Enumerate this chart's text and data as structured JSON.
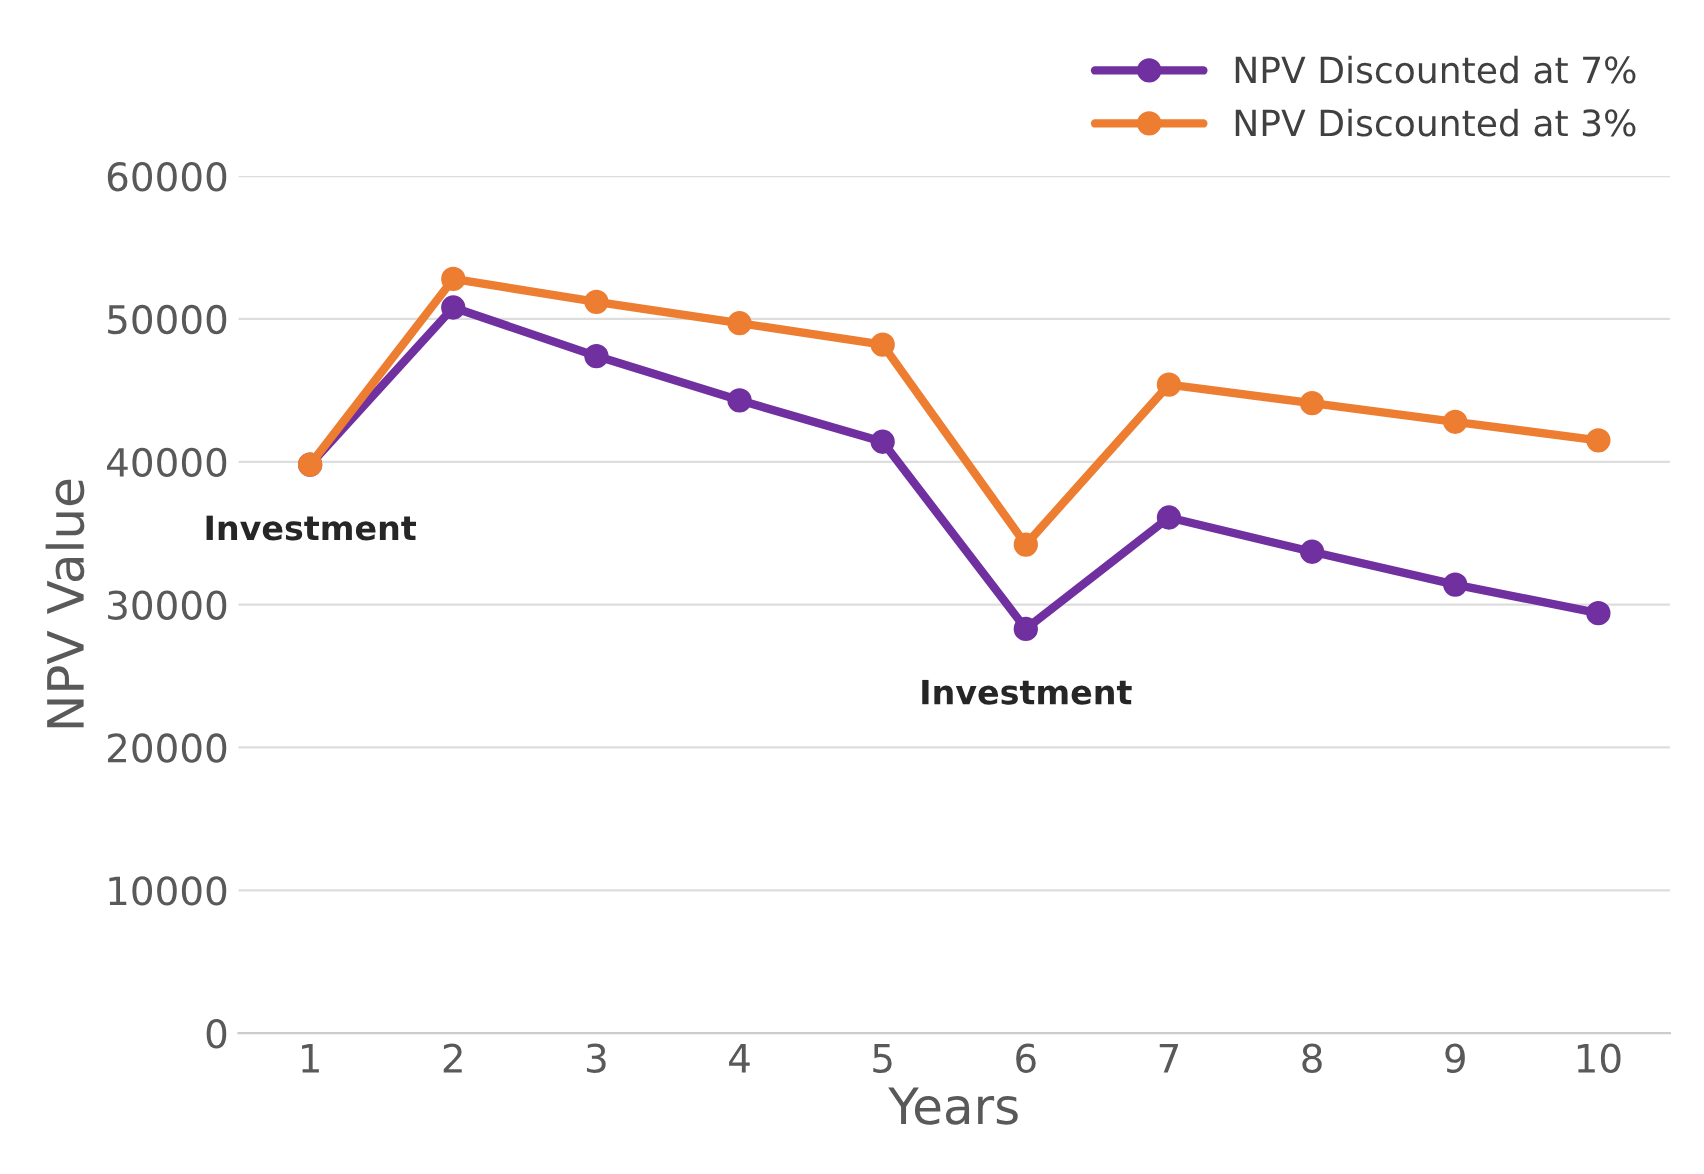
{
  "chart_data": {
    "type": "line",
    "xlabel": "Years",
    "ylabel": "NPV Value",
    "categories": [
      "1",
      "2",
      "3",
      "4",
      "5",
      "6",
      "7",
      "8",
      "9",
      "10"
    ],
    "series": [
      {
        "name": "NPV Discounted at 7%",
        "color": "#7030a0",
        "values": [
          39800,
          50800,
          47400,
          44300,
          41400,
          28300,
          36100,
          33700,
          31400,
          29400
        ]
      },
      {
        "name": "NPV Discounted at 3%",
        "color": "#ed7d31",
        "values": [
          39800,
          52800,
          51200,
          49700,
          48200,
          34200,
          45400,
          44100,
          42800,
          41500
        ]
      }
    ],
    "ylim": [
      0,
      60000
    ],
    "yticks": [
      0,
      10000,
      20000,
      30000,
      40000,
      50000,
      60000
    ],
    "grid": "y",
    "legend": "top right",
    "marker": "circle",
    "line_style": "solid",
    "annotations": [
      {
        "text": "Investment",
        "x": "1",
        "y": 39800
      },
      {
        "text": "Investment",
        "x": "6",
        "y": 28300
      }
    ]
  }
}
